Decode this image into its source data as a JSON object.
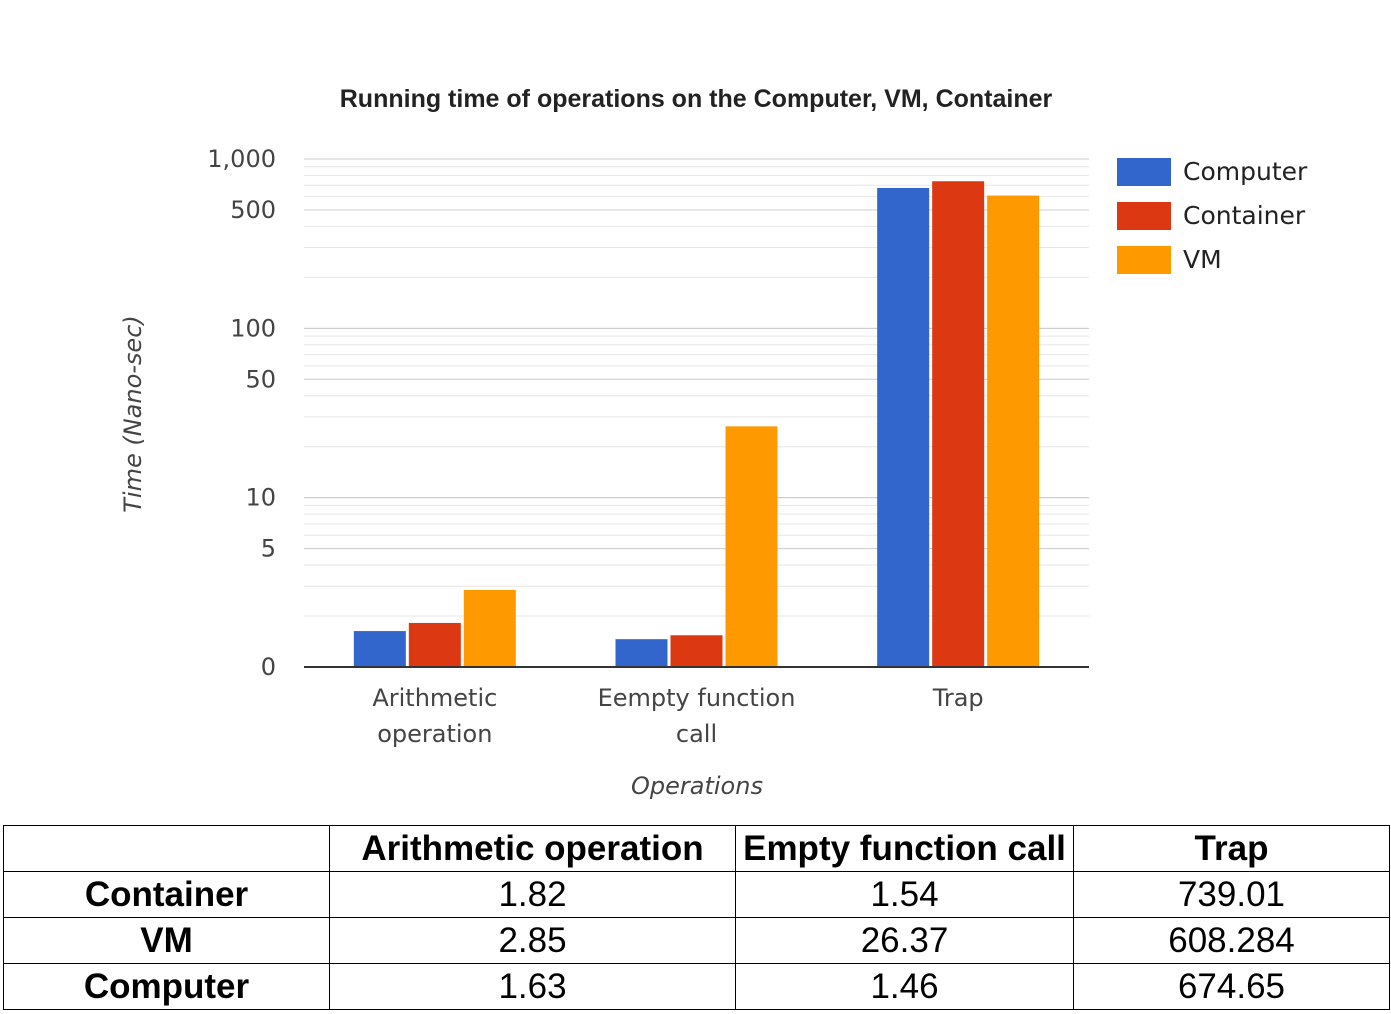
{
  "chart_data": {
    "type": "bar",
    "title": "Running time of operations on the Computer, VM, Container",
    "xlabel": "Operations",
    "ylabel": "Time (Nano-sec)",
    "yscale": "log",
    "ylim": [
      1,
      1000
    ],
    "yticks": [
      {
        "value": 1000,
        "label": "1,000"
      },
      {
        "value": 500,
        "label": "500"
      },
      {
        "value": 100,
        "label": "100"
      },
      {
        "value": 50,
        "label": "50"
      },
      {
        "value": 10,
        "label": "10"
      },
      {
        "value": 5,
        "label": "5"
      },
      {
        "value": 1,
        "label": "0"
      }
    ],
    "categories": [
      [
        "Arithmetic",
        "operation"
      ],
      [
        "Eempty function",
        "call"
      ],
      [
        "Trap"
      ]
    ],
    "series": [
      {
        "name": "Computer",
        "color": "#3366cc",
        "values": [
          1.63,
          1.46,
          674.65
        ]
      },
      {
        "name": "Container",
        "color": "#dc3912",
        "values": [
          1.82,
          1.54,
          739.01
        ]
      },
      {
        "name": "VM",
        "color": "#ff9900",
        "values": [
          2.85,
          26.37,
          608.284
        ]
      }
    ],
    "grid": true,
    "legend": "right"
  },
  "table": {
    "corner": "",
    "columns": [
      "Arithmetic operation",
      "Empty function call",
      "Trap"
    ],
    "rows": [
      {
        "label": "Container",
        "cells": [
          "1.82",
          "1.54",
          "739.01"
        ]
      },
      {
        "label": "VM",
        "cells": [
          "2.85",
          "26.37",
          "608.284"
        ]
      },
      {
        "label": "Computer",
        "cells": [
          "1.63",
          "1.46",
          "674.65"
        ]
      }
    ]
  }
}
